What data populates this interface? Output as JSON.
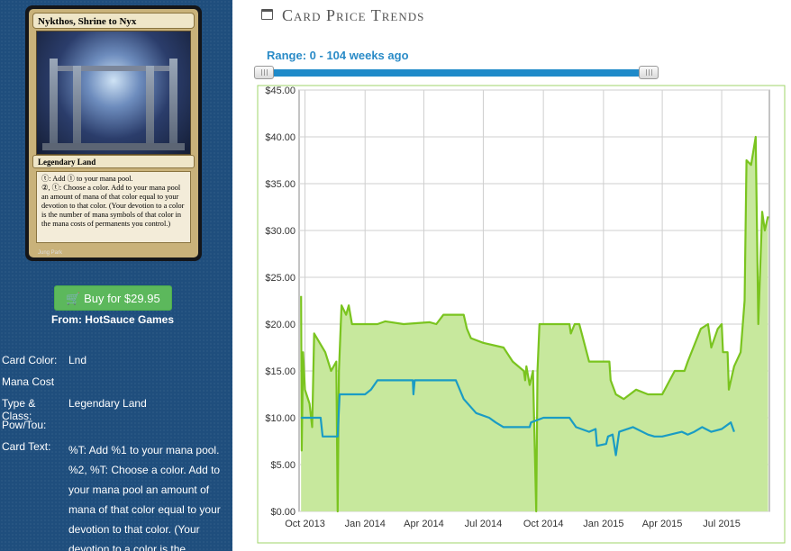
{
  "card": {
    "name": "Nykthos, Shrine to Nyx",
    "type_line": "Legendary Land",
    "rules_text": [
      "ⓣ: Add ① to your mana pool.",
      "②, ⓣ: Choose a color. Add to your mana pool an amount of mana of that color equal to your devotion to that color. (Your devotion to a color is the number of mana symbols of that color in the mana costs of permanents you control.)"
    ],
    "artist": "Jung Park"
  },
  "buy": {
    "label": "Buy for $29.95",
    "from": "From: HotSauce Games"
  },
  "info": {
    "color_label": "Card Color:",
    "color_value": "Lnd",
    "mana_label": "Mana Cost",
    "mana_value": "",
    "type_label": "Type & Class:",
    "type_value": "Legendary Land",
    "pt_label": "Pow/Tou:",
    "pt_value": "",
    "text_label": "Card Text:",
    "text_value": "%T: Add %1 to your mana pool. %2, %T: Choose a color. Add to your mana pool an amount of mana of that color equal to your devotion to that color. (Your devotion to a color is the"
  },
  "header": {
    "title": "Card Price Trends",
    "icon": "calendar-icon"
  },
  "range": {
    "label": "Range: 0 - 104 weeks ago",
    "min_weeks": 0,
    "max_weeks": 104
  },
  "chart_data": {
    "type": "line",
    "title": "",
    "xlabel": "",
    "ylabel": "",
    "ylim": [
      0,
      45
    ],
    "x_ticks": [
      "Oct 2013",
      "Jan 2014",
      "Apr 2014",
      "Jul 2014",
      "Oct 2014",
      "Jan 2015",
      "Apr 2015",
      "Jul 2015"
    ],
    "y_ticks": [
      "$0.00",
      "$5.00",
      "$10.00",
      "$15.00",
      "$20.00",
      "$25.00",
      "$30.00",
      "$35.00",
      "$40.00",
      "$45.00"
    ],
    "grid": true,
    "colors": {
      "green": "#7ac41f",
      "green_fill": "#c7e89d",
      "blue": "#1a9cc4"
    },
    "series": [
      {
        "color": "green",
        "fill": true,
        "points": [
          [
            "2013-09-25",
            23
          ],
          [
            "2013-09-26",
            6.5
          ],
          [
            "2013-09-28",
            17
          ],
          [
            "2013-10-01",
            13
          ],
          [
            "2013-10-08",
            11.5
          ],
          [
            "2013-10-12",
            9
          ],
          [
            "2013-10-15",
            19
          ],
          [
            "2013-11-01",
            17
          ],
          [
            "2013-11-10",
            15
          ],
          [
            "2013-11-18",
            16
          ],
          [
            "2013-11-20",
            0
          ],
          [
            "2013-11-22",
            15
          ],
          [
            "2013-11-26",
            22
          ],
          [
            "2013-12-03",
            21
          ],
          [
            "2013-12-07",
            22
          ],
          [
            "2013-12-12",
            20
          ],
          [
            "2014-01-20",
            20
          ],
          [
            "2014-02-01",
            20.3
          ],
          [
            "2014-03-01",
            20
          ],
          [
            "2014-04-10",
            20.2
          ],
          [
            "2014-04-20",
            20
          ],
          [
            "2014-05-01",
            21
          ],
          [
            "2014-06-01",
            21
          ],
          [
            "2014-06-06",
            19.5
          ],
          [
            "2014-06-12",
            18.5
          ],
          [
            "2014-07-01",
            18
          ],
          [
            "2014-08-01",
            17.5
          ],
          [
            "2014-08-15",
            16
          ],
          [
            "2014-09-01",
            15
          ],
          [
            "2014-09-03",
            14
          ],
          [
            "2014-09-05",
            15.5
          ],
          [
            "2014-09-10",
            13.5
          ],
          [
            "2014-09-15",
            15
          ],
          [
            "2014-09-20",
            0
          ],
          [
            "2014-09-22",
            15
          ],
          [
            "2014-09-25",
            20
          ],
          [
            "2014-11-10",
            20
          ],
          [
            "2014-11-12",
            19
          ],
          [
            "2014-11-18",
            20
          ],
          [
            "2014-11-25",
            20
          ],
          [
            "2014-12-10",
            16
          ],
          [
            "2015-01-10",
            16
          ],
          [
            "2015-01-12",
            14
          ],
          [
            "2015-01-20",
            12.5
          ],
          [
            "2015-02-01",
            12
          ],
          [
            "2015-02-20",
            13
          ],
          [
            "2015-03-10",
            12.5
          ],
          [
            "2015-04-01",
            12.5
          ],
          [
            "2015-04-20",
            15
          ],
          [
            "2015-05-05",
            15
          ],
          [
            "2015-05-10",
            16
          ],
          [
            "2015-05-30",
            19.5
          ],
          [
            "2015-06-10",
            20
          ],
          [
            "2015-06-15",
            17.5
          ],
          [
            "2015-06-25",
            19.5
          ],
          [
            "2015-07-01",
            20
          ],
          [
            "2015-07-03",
            17
          ],
          [
            "2015-07-10",
            17
          ],
          [
            "2015-07-12",
            13
          ],
          [
            "2015-07-20",
            15.5
          ],
          [
            "2015-07-30",
            17
          ],
          [
            "2015-08-05",
            22.5
          ],
          [
            "2015-08-08",
            37.5
          ],
          [
            "2015-08-15",
            37
          ],
          [
            "2015-08-22",
            40
          ],
          [
            "2015-08-26",
            20
          ],
          [
            "2015-09-01",
            32
          ],
          [
            "2015-09-05",
            30
          ],
          [
            "2015-09-10",
            31.5
          ]
        ]
      },
      {
        "color": "blue",
        "fill": false,
        "points": [
          [
            "2013-09-25",
            10
          ],
          [
            "2013-10-25",
            10
          ],
          [
            "2013-10-28",
            8
          ],
          [
            "2013-11-20",
            8
          ],
          [
            "2013-11-23",
            12.5
          ],
          [
            "2014-01-01",
            12.5
          ],
          [
            "2014-01-10",
            13
          ],
          [
            "2014-01-20",
            14
          ],
          [
            "2014-03-15",
            14
          ],
          [
            "2014-03-16",
            12.5
          ],
          [
            "2014-03-18",
            14
          ],
          [
            "2014-05-20",
            14
          ],
          [
            "2014-06-01",
            12
          ],
          [
            "2014-06-20",
            10.5
          ],
          [
            "2014-07-10",
            10
          ],
          [
            "2014-07-20",
            9.5
          ],
          [
            "2014-08-01",
            9
          ],
          [
            "2014-09-10",
            9
          ],
          [
            "2014-09-12",
            9.5
          ],
          [
            "2014-10-01",
            10
          ],
          [
            "2014-11-10",
            10
          ],
          [
            "2014-11-20",
            9
          ],
          [
            "2014-12-10",
            8.5
          ],
          [
            "2014-12-20",
            8.8
          ],
          [
            "2014-12-22",
            7
          ],
          [
            "2015-01-05",
            7.2
          ],
          [
            "2015-01-08",
            8
          ],
          [
            "2015-01-15",
            8.2
          ],
          [
            "2015-01-20",
            6
          ],
          [
            "2015-01-25",
            8.5
          ],
          [
            "2015-02-15",
            9
          ],
          [
            "2015-03-10",
            8.2
          ],
          [
            "2015-03-20",
            8
          ],
          [
            "2015-04-01",
            8
          ],
          [
            "2015-05-01",
            8.5
          ],
          [
            "2015-05-10",
            8.2
          ],
          [
            "2015-05-20",
            8.5
          ],
          [
            "2015-06-01",
            9
          ],
          [
            "2015-06-15",
            8.5
          ],
          [
            "2015-07-01",
            8.8
          ],
          [
            "2015-07-15",
            9.5
          ],
          [
            "2015-07-20",
            8.5
          ]
        ]
      }
    ]
  }
}
